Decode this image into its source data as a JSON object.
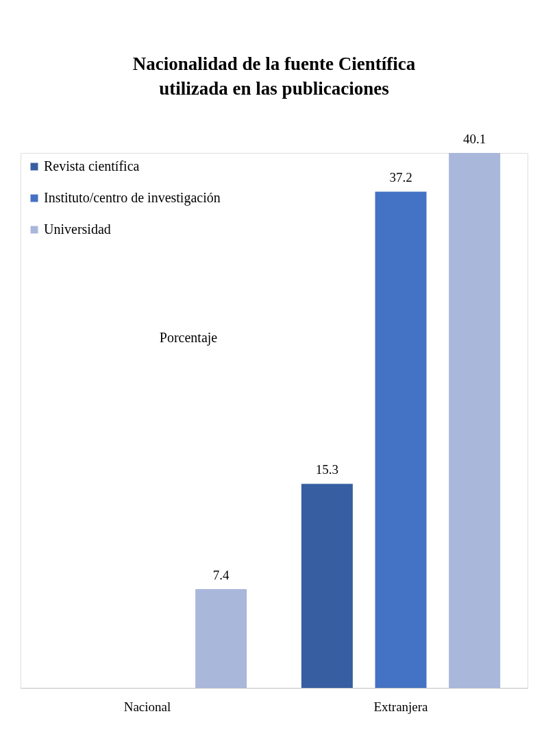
{
  "chart_data": {
    "type": "bar",
    "title": "Nacionalidad de la fuente Científica utilizada en las publicaciones",
    "ylabel": "Porcentaje",
    "categories": [
      "Nacional",
      "Extranjera"
    ],
    "series": [
      {
        "name": "Revista científica",
        "color": "#375ea1",
        "values": [
          null,
          15.3
        ]
      },
      {
        "name": "Instituto/centro de investigación",
        "color": "#4472c4",
        "values": [
          null,
          37.2
        ]
      },
      {
        "name": "Universidad",
        "color": "#a9b7db",
        "values": [
          7.4,
          40.1
        ]
      }
    ],
    "data_labels": true,
    "legend": "top left",
    "grid": false
  }
}
